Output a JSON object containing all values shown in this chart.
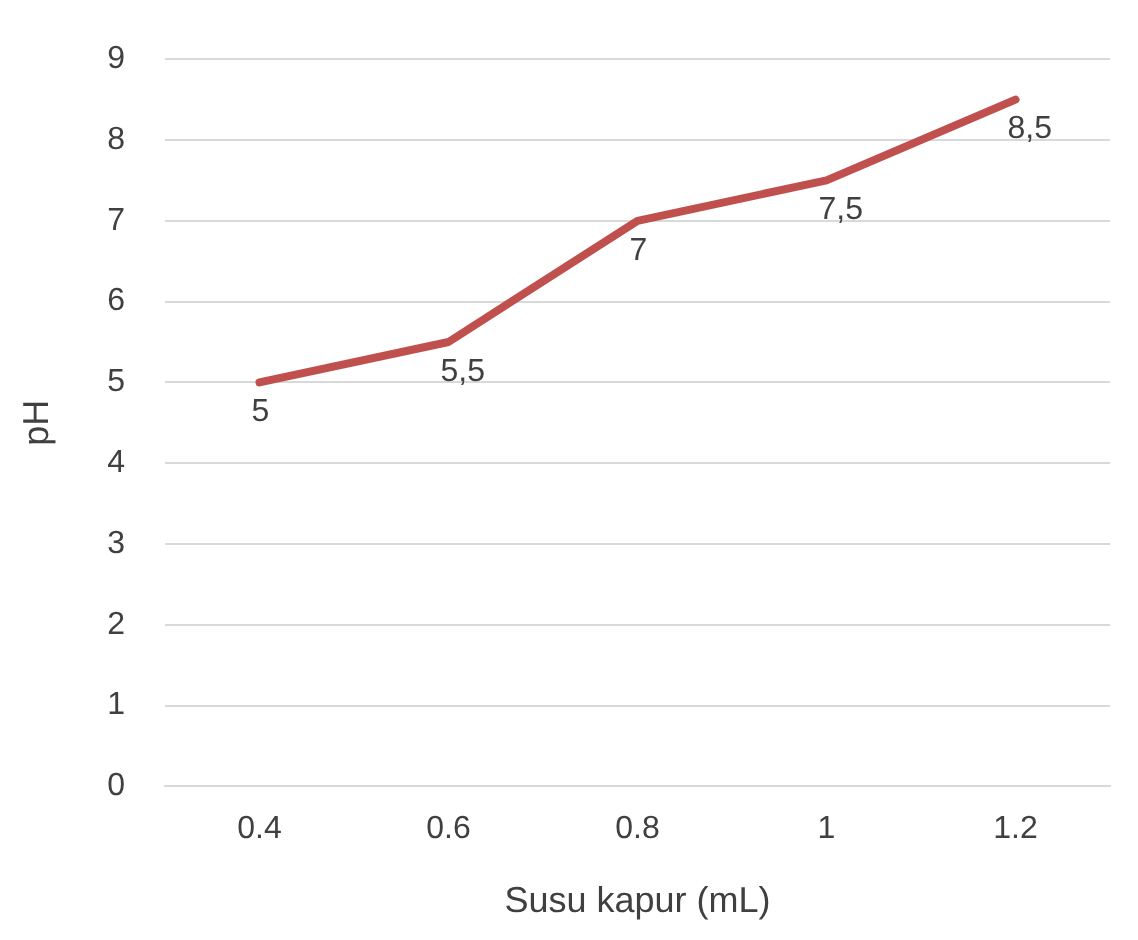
{
  "chart_data": {
    "type": "line",
    "xlabel": "Susu kapur (mL)",
    "ylabel": "pH",
    "categories": [
      "0.4",
      "0.6",
      "0.8",
      "1",
      "1.2"
    ],
    "series": [
      {
        "color": "#c0504d",
        "values": [
          5,
          5.5,
          7,
          7.5,
          8.5
        ],
        "value_labels": [
          "5",
          "5,5",
          "7",
          "7,5",
          "8,5"
        ]
      }
    ],
    "ylim": [
      0,
      9
    ],
    "yticks": [
      0,
      1,
      2,
      3,
      4,
      5,
      6,
      7,
      8,
      9
    ],
    "grid": "y",
    "legend": false,
    "marker": "none",
    "line_style": "solid"
  }
}
